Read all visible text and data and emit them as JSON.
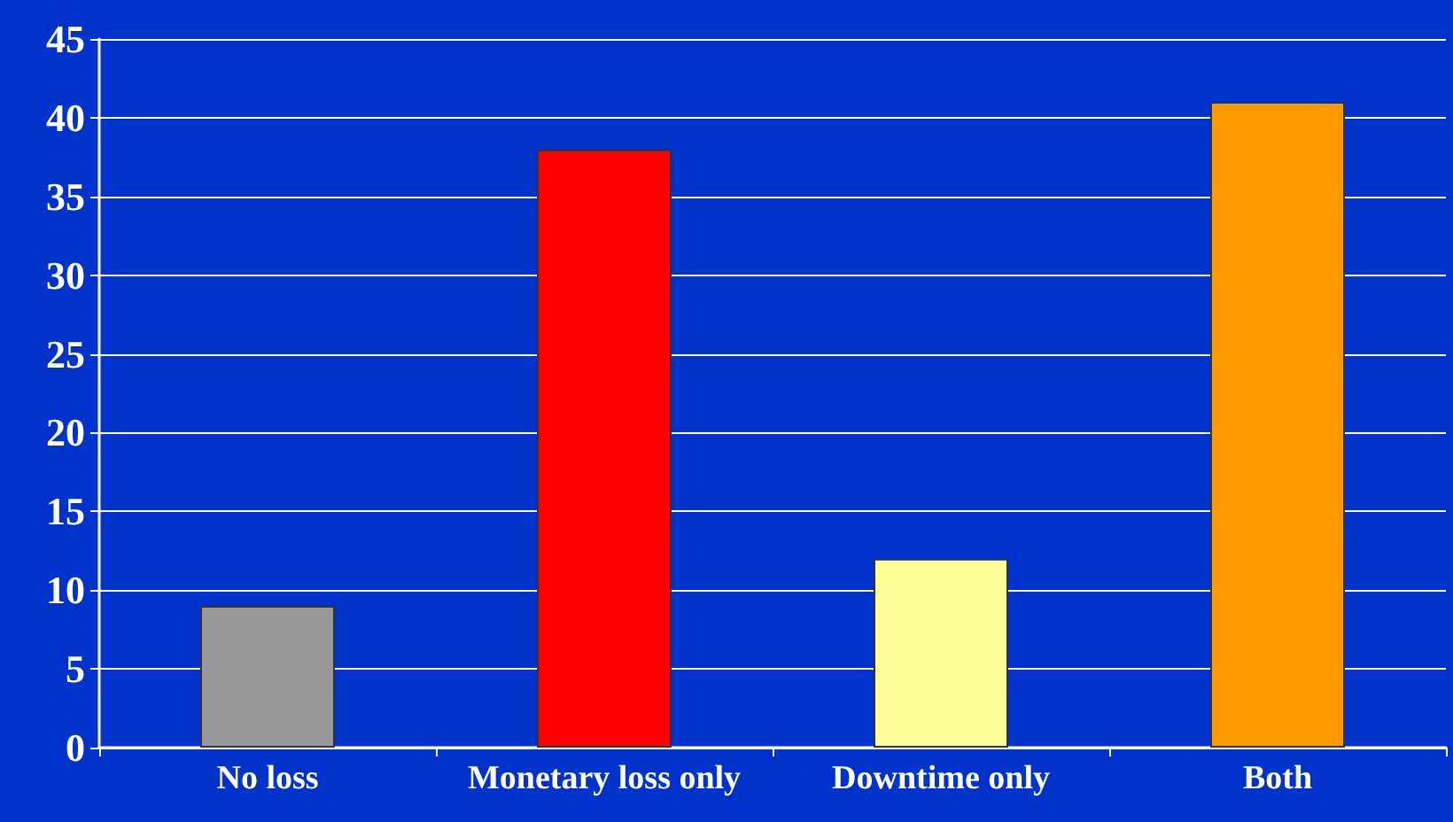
{
  "chart_data": {
    "type": "bar",
    "categories": [
      "No loss",
      "Monetary loss only",
      "Downtime only",
      "Both"
    ],
    "values": [
      9,
      38,
      12,
      41
    ],
    "colors": [
      "#999999",
      "#ff0000",
      "#ffff99",
      "#ff9900"
    ],
    "ylim": [
      0,
      45
    ],
    "yticks": [
      0,
      5,
      10,
      15,
      20,
      25,
      30,
      35,
      40,
      45
    ],
    "grid": "y"
  }
}
